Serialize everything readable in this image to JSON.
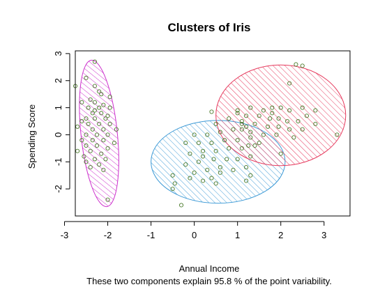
{
  "chart_data": {
    "type": "scatter",
    "title": "Clusters of Iris",
    "xlabel": "Annual Income",
    "ylabel": "Spending Score",
    "subtitle": "These two components explain 95.8 % of the point variability.",
    "xlim": [
      -2.75,
      3.6
    ],
    "ylim": [
      -3.0,
      3.1
    ],
    "x_ticks": [
      -3,
      -2,
      -1,
      0,
      1,
      2,
      3
    ],
    "x_tick_labels": [
      "-3",
      "-2",
      "-1",
      "0",
      "1",
      "2",
      "3"
    ],
    "y_ticks": [
      -2,
      -1,
      0,
      1,
      2,
      3
    ],
    "y_tick_labels": [
      "-2",
      "-1",
      "0",
      "1",
      "2",
      "3"
    ],
    "grid": false,
    "point_color": "#4a7a2a",
    "clusters": [
      {
        "color": "#cc2fcc",
        "ellipse": {
          "cx": -2.2,
          "cy": 0.05,
          "rx": 0.42,
          "ry": 2.72,
          "angle_deg": 6
        },
        "points": [
          [
            -2.3,
            2.7
          ],
          [
            -2.5,
            2.1
          ],
          [
            -2.3,
            1.8
          ],
          [
            -2.2,
            1.6
          ],
          [
            -2.75,
            1.8
          ],
          [
            -2.15,
            1.5
          ],
          [
            -1.95,
            1.4
          ],
          [
            -2.4,
            1.3
          ],
          [
            -2.6,
            1.2
          ],
          [
            -2.3,
            1.2
          ],
          [
            -2.1,
            1.1
          ],
          [
            -2.45,
            1.0
          ],
          [
            -2.2,
            1.0
          ],
          [
            -1.95,
            1.0
          ],
          [
            -2.35,
            0.8
          ],
          [
            -2.15,
            0.8
          ],
          [
            -2.5,
            0.6
          ],
          [
            -2.3,
            0.6
          ],
          [
            -2.05,
            0.6
          ],
          [
            -2.45,
            0.4
          ],
          [
            -2.2,
            0.4
          ],
          [
            -1.95,
            0.4
          ],
          [
            -2.7,
            0.3
          ],
          [
            -2.35,
            0.2
          ],
          [
            -2.1,
            0.2
          ],
          [
            -1.8,
            0.2
          ],
          [
            -2.5,
            0.0
          ],
          [
            -2.25,
            0.0
          ],
          [
            -2.0,
            0.0
          ],
          [
            -2.6,
            -0.2
          ],
          [
            -2.35,
            -0.2
          ],
          [
            -2.1,
            -0.2
          ],
          [
            -1.85,
            -0.3
          ],
          [
            -2.5,
            -0.4
          ],
          [
            -2.25,
            -0.4
          ],
          [
            -2.0,
            -0.5
          ],
          [
            -2.7,
            -0.6
          ],
          [
            -2.4,
            -0.6
          ],
          [
            -2.15,
            -0.7
          ],
          [
            -2.55,
            -0.8
          ],
          [
            -2.3,
            -0.9
          ],
          [
            -2.05,
            -0.9
          ],
          [
            -2.5,
            -1.0
          ],
          [
            -2.2,
            -1.1
          ],
          [
            -2.4,
            -1.2
          ],
          [
            -2.1,
            -1.3
          ],
          [
            -2.0,
            -2.4
          ],
          [
            -2.3,
            0.9
          ],
          [
            -2.0,
            0.7
          ],
          [
            -2.6,
            0.5
          ]
        ]
      },
      {
        "color": "#3d9ad6",
        "ellipse": {
          "cx": 0.55,
          "cy": -1.0,
          "rx": 1.55,
          "ry": 1.53,
          "angle_deg": 0
        },
        "points": [
          [
            -0.3,
            -2.6
          ],
          [
            -0.5,
            -2.0
          ],
          [
            -0.45,
            -1.8
          ],
          [
            -0.5,
            -1.5
          ],
          [
            -0.1,
            -1.6
          ],
          [
            0.2,
            -1.7
          ],
          [
            0.4,
            -1.6
          ],
          [
            0.5,
            -1.8
          ],
          [
            0.0,
            -1.4
          ],
          [
            0.3,
            -1.3
          ],
          [
            0.6,
            -1.2
          ],
          [
            0.9,
            -1.3
          ],
          [
            1.2,
            -1.7
          ],
          [
            1.3,
            -1.5
          ],
          [
            -0.2,
            -1.1
          ],
          [
            0.1,
            -1.0
          ],
          [
            0.45,
            -0.9
          ],
          [
            0.75,
            -0.9
          ],
          [
            1.0,
            -0.9
          ],
          [
            1.3,
            -0.8
          ],
          [
            -0.1,
            -0.7
          ],
          [
            0.2,
            -0.6
          ],
          [
            0.5,
            -0.6
          ],
          [
            0.8,
            -0.5
          ],
          [
            1.1,
            -0.5
          ],
          [
            1.4,
            -0.4
          ],
          [
            -0.2,
            -0.3
          ],
          [
            0.1,
            -0.3
          ],
          [
            0.4,
            -0.3
          ],
          [
            0.7,
            -0.2
          ],
          [
            1.0,
            -0.2
          ],
          [
            1.3,
            -0.1
          ],
          [
            0.0,
            0.0
          ],
          [
            0.3,
            0.0
          ],
          [
            0.6,
            0.1
          ],
          [
            0.9,
            0.2
          ],
          [
            1.2,
            0.3
          ],
          [
            0.5,
            0.4
          ],
          [
            0.8,
            0.6
          ],
          [
            1.1,
            0.5
          ],
          [
            0.4,
            0.85
          ],
          [
            1.0,
            0.8
          ],
          [
            0.2,
            -0.8
          ],
          [
            0.6,
            -1.4
          ],
          [
            1.2,
            -1.2
          ]
        ]
      },
      {
        "color": "#e63b5e",
        "ellipse": {
          "cx": 2.0,
          "cy": 0.72,
          "rx": 1.5,
          "ry": 1.86,
          "angle_deg": 0
        },
        "points": [
          [
            2.35,
            2.6
          ],
          [
            2.5,
            2.55
          ],
          [
            2.2,
            1.9
          ],
          [
            1.0,
            0.9
          ],
          [
            1.3,
            1.0
          ],
          [
            1.6,
            0.9
          ],
          [
            1.8,
            1.0
          ],
          [
            2.0,
            1.0
          ],
          [
            2.2,
            0.9
          ],
          [
            2.5,
            1.0
          ],
          [
            2.8,
            0.9
          ],
          [
            1.2,
            0.7
          ],
          [
            1.5,
            0.7
          ],
          [
            1.75,
            0.6
          ],
          [
            1.95,
            0.6
          ],
          [
            2.15,
            0.5
          ],
          [
            2.4,
            0.5
          ],
          [
            1.1,
            0.4
          ],
          [
            1.4,
            0.4
          ],
          [
            1.7,
            0.3
          ],
          [
            1.95,
            0.3
          ],
          [
            2.2,
            0.2
          ],
          [
            2.5,
            0.2
          ],
          [
            1.3,
            0.1
          ],
          [
            1.6,
            0.0
          ],
          [
            1.9,
            0.0
          ],
          [
            2.3,
            -0.1
          ],
          [
            2.8,
            0.4
          ],
          [
            3.3,
            0.0
          ],
          [
            1.5,
            -0.3
          ],
          [
            1.25,
            -0.4
          ],
          [
            2.0,
            -0.7
          ],
          [
            1.1,
            0.2
          ],
          [
            1.8,
            0.8
          ],
          [
            2.6,
            0.7
          ]
        ]
      }
    ]
  }
}
